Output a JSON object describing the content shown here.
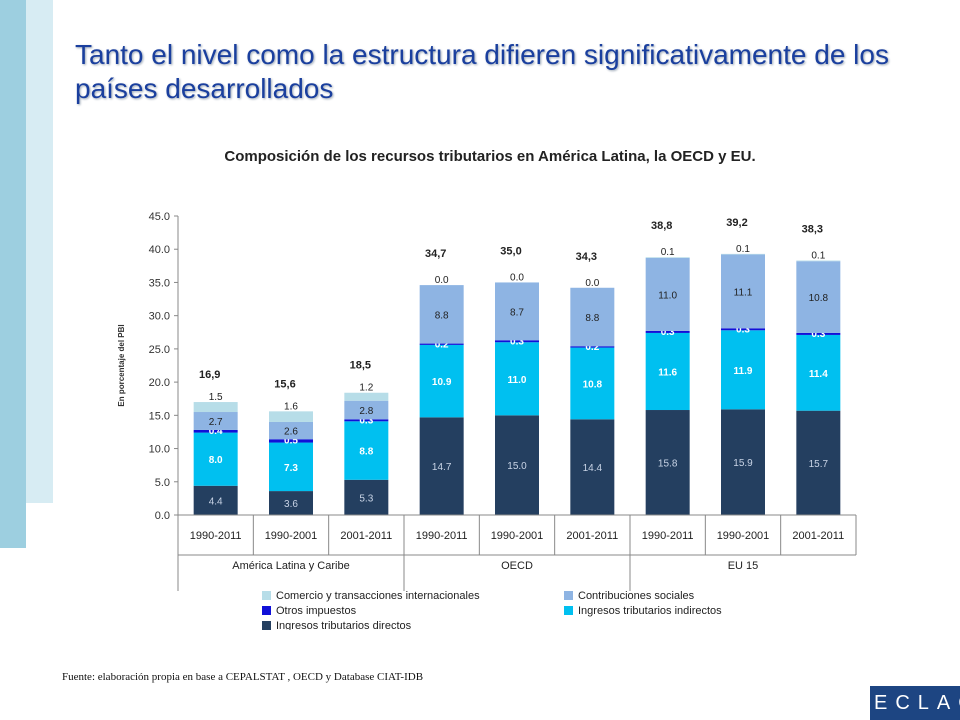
{
  "title": "Tanto el nivel como la estructura difieren significativamente de los países desarrollados",
  "source": "Fuente: elaboración propia en base a CEPALSTAT , OECD y Database CIAT-IDB",
  "logo": "ECLAC",
  "chart_data": {
    "type": "bar",
    "stacked": true,
    "title": "Composición de los recursos tributarios en América Latina, la OECD y EU.",
    "ylabel": "En porcentaje del PBI",
    "ylim": [
      0,
      45
    ],
    "yticks": [
      "0.0",
      "5.0",
      "10.0",
      "15.0",
      "20.0",
      "25.0",
      "30.0",
      "35.0",
      "40.0",
      "45.0"
    ],
    "categories": [
      "1990-2011",
      "1990-2001",
      "2001-2011",
      "1990-2011",
      "1990-2001",
      "2001-2011",
      "1990-2011",
      "1990-2001",
      "2001-2011"
    ],
    "groups": [
      {
        "label": "América Latina y Caribe",
        "count": 3
      },
      {
        "label": "OECD",
        "count": 3
      },
      {
        "label": "EU 15",
        "count": 3
      }
    ],
    "totals": [
      "16,9",
      "15,6",
      "18,5",
      "34,7",
      "35,0",
      "34,3",
      "38,8",
      "39,2",
      "38,3"
    ],
    "series": [
      {
        "name": "Ingresos tributarios directos",
        "color": "#243f60",
        "values": [
          4.4,
          3.6,
          5.3,
          14.7,
          15.0,
          14.4,
          15.8,
          15.9,
          15.7
        ],
        "labels": [
          "4.4",
          "3.6",
          "5.3",
          "14.7",
          "15.0",
          "14.4",
          "15.8",
          "15.9",
          "15.7"
        ]
      },
      {
        "name": "Ingresos tributarios indirectos",
        "color": "#00c0f0",
        "values": [
          8.0,
          7.3,
          8.8,
          10.9,
          11.0,
          10.8,
          11.6,
          11.9,
          11.4
        ],
        "labels": [
          "8.0",
          "7.3",
          "8.8",
          "10.9",
          "11.0",
          "10.8",
          "11.6",
          "11.9",
          "11.4"
        ]
      },
      {
        "name": "Otros impuestos",
        "color": "#1010d8",
        "values": [
          0.4,
          0.5,
          0.3,
          0.2,
          0.3,
          0.2,
          0.3,
          0.3,
          0.3
        ],
        "labels": [
          "0.4",
          "0.5",
          "0.3",
          "0.2",
          "0.3",
          "0.2",
          "0.3",
          "0.3",
          "0.3"
        ]
      },
      {
        "name": "Contribuciones sociales",
        "color": "#8eb4e3",
        "values": [
          2.7,
          2.6,
          2.8,
          8.8,
          8.7,
          8.8,
          11.0,
          11.1,
          10.8
        ],
        "labels": [
          "2.7",
          "2.6",
          "2.8",
          "8.8",
          "8.7",
          "8.8",
          "11.0",
          "11.1",
          "10.8"
        ]
      },
      {
        "name": "Comercio y transacciones internacionales",
        "color": "#b7dde8",
        "values": [
          1.5,
          1.6,
          1.2,
          0.0,
          0.0,
          0.0,
          0.1,
          0.1,
          0.1
        ],
        "labels": [
          "1.5",
          "1.6",
          "1.2",
          "0.0",
          "0.0",
          "0.0",
          "0.1",
          "0.1",
          "0.1"
        ]
      }
    ],
    "legend": [
      {
        "series": 4,
        "label": "Comercio y transacciones internacionales"
      },
      {
        "series": 3,
        "label": "Contribuciones sociales"
      },
      {
        "series": 2,
        "label": "Otros impuestos"
      },
      {
        "series": 1,
        "label": "Ingresos tributarios indirectos"
      },
      {
        "series": 0,
        "label": "Ingresos tributarios directos"
      }
    ]
  }
}
